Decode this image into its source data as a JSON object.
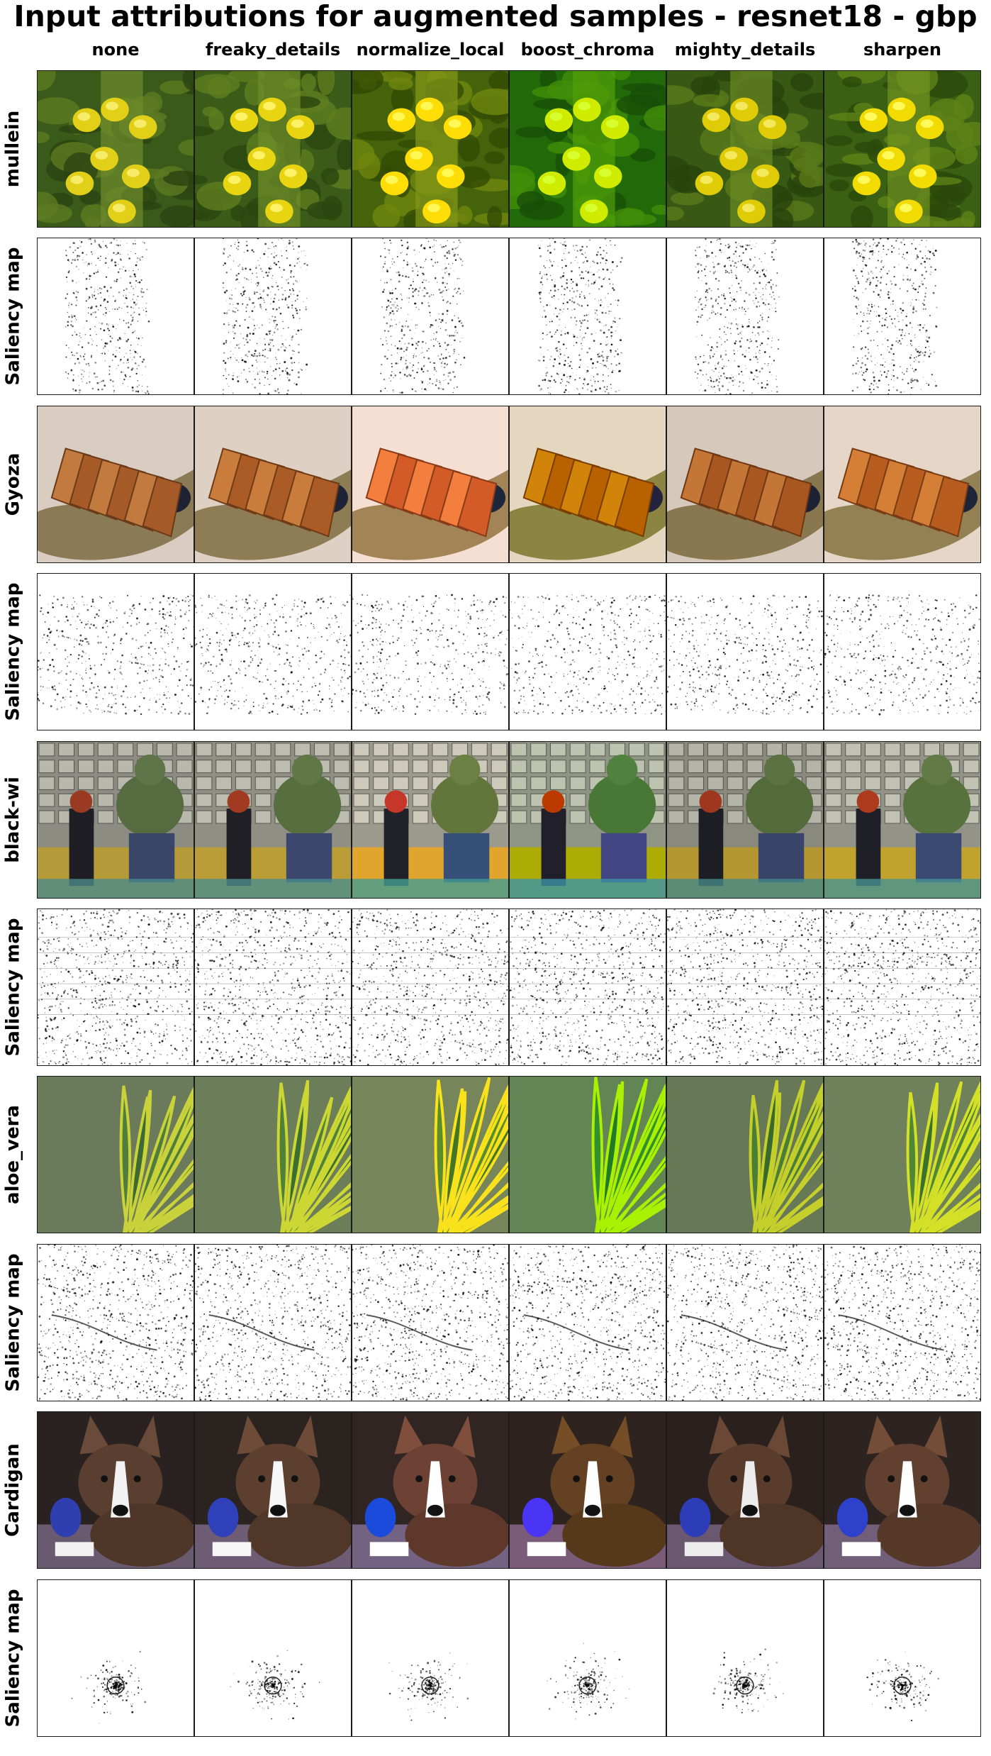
{
  "title": "Input attributions for augmented samples - resnet18 - gbp",
  "columns": [
    "none",
    "freaky_details",
    "normalize_local",
    "boost_chroma",
    "mighty_details",
    "sharpen"
  ],
  "rows": [
    {
      "label": "mullein",
      "kind": "image",
      "subject": "yellow flower spike"
    },
    {
      "label": "Saliency map",
      "kind": "saliency",
      "subject": "flower outline"
    },
    {
      "label": "Gyoza",
      "kind": "image",
      "subject": "plate of fried dumplings"
    },
    {
      "label": "Saliency map",
      "kind": "saliency",
      "subject": "dumpling outline"
    },
    {
      "label": "black-wi",
      "kind": "image",
      "subject": "two figures in a city street"
    },
    {
      "label": "Saliency map",
      "kind": "saliency",
      "subject": "street scene edges"
    },
    {
      "label": "aloe_vera",
      "kind": "image",
      "subject": "green and yellow leaves"
    },
    {
      "label": "Saliency map",
      "kind": "saliency",
      "subject": "leaf edges"
    },
    {
      "label": "Cardigan",
      "kind": "image",
      "subject": "corgi dog with blue toy"
    },
    {
      "label": "Saliency map",
      "kind": "saliency",
      "subject": "dog face outline"
    }
  ],
  "colors": {
    "mullein": [
      "#2e4a14",
      "#5c7a22",
      "#e2cf18"
    ],
    "gyoza": [
      "#d9ccc0",
      "#a55a28",
      "#8a7a55"
    ],
    "street": [
      "#8c8c82",
      "#566b40",
      "#2b2f3e"
    ],
    "aloe": [
      "#3c6a32",
      "#c9d23a",
      "#6a8e5a"
    ],
    "corgi": [
      "#2a2220",
      "#6a4a38",
      "#2f3fb0"
    ]
  }
}
